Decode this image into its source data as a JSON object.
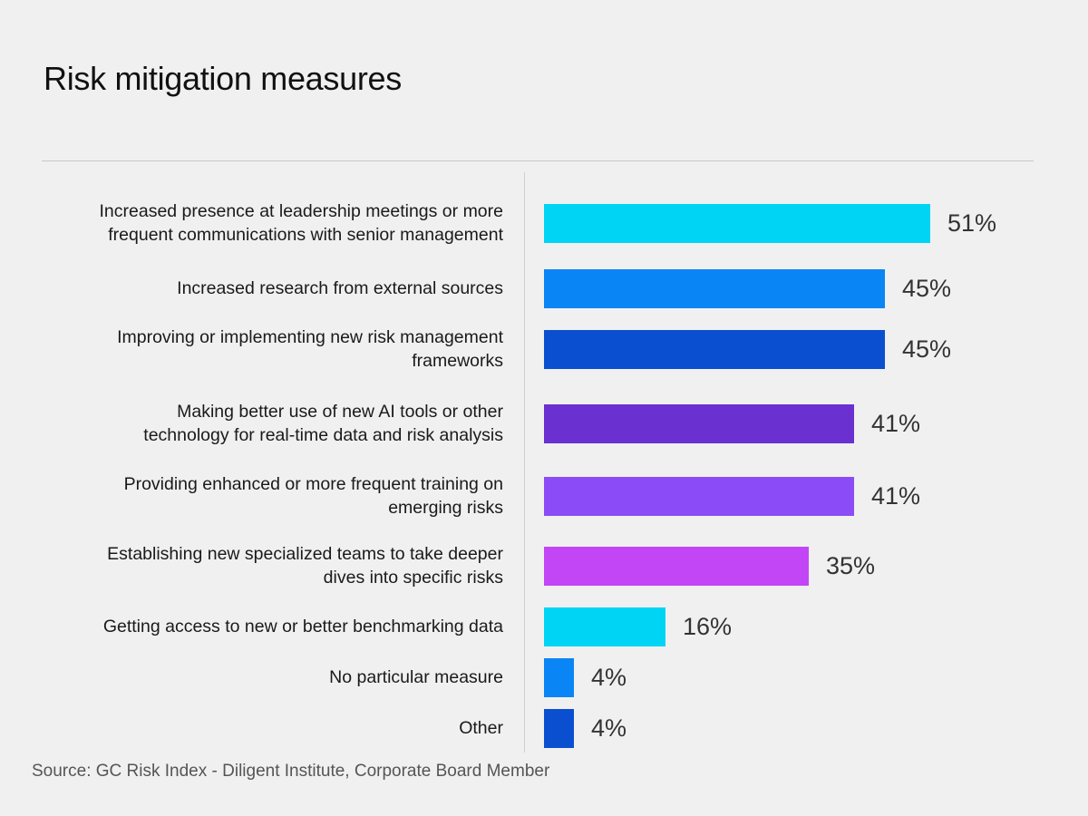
{
  "title": "Risk mitigation measures",
  "source": "Source: GC Risk Index - Diligent Institute, Corporate Board Member",
  "chart_data": {
    "type": "bar",
    "orientation": "horizontal",
    "title": "Risk mitigation measures",
    "unit": "%",
    "xlim": [
      0,
      51
    ],
    "categories": [
      "Increased presence at leadership meetings or more frequent communications with senior management",
      "Increased research from external sources",
      "Improving or implementing new risk management frameworks",
      "Making better use of new AI tools or other technology for real-time data and risk analysis",
      "Providing enhanced or more frequent training on emerging risks",
      "Establishing new specialized teams to take deeper dives into specific risks",
      "Getting access to new or better benchmarking data",
      "No particular measure",
      "Other"
    ],
    "label_lines": [
      [
        "Increased presence at leadership meetings or more",
        "frequent communications with senior management"
      ],
      [
        "Increased research from external sources"
      ],
      [
        "Improving or implementing new risk management",
        "frameworks"
      ],
      [
        "Making better use of new AI tools or other",
        "technology for real-time data and risk analysis"
      ],
      [
        "Providing enhanced or more frequent training on",
        "emerging risks"
      ],
      [
        "Establishing new specialized teams to take deeper",
        "dives into specific risks"
      ],
      [
        "Getting access to new or better benchmarking data"
      ],
      [
        "No particular measure"
      ],
      [
        "Other"
      ]
    ],
    "values": [
      51,
      45,
      45,
      41,
      41,
      35,
      16,
      4,
      4
    ],
    "value_labels": [
      "51%",
      "45%",
      "45%",
      "41%",
      "41%",
      "35%",
      "16%",
      "4%",
      "4%"
    ],
    "colors": [
      "#00d4f5",
      "#0a85f5",
      "#0b4fd1",
      "#6a30d0",
      "#8b4cf7",
      "#c246f5",
      "#00d4f5",
      "#0a85f5",
      "#0b4fd1"
    ]
  }
}
